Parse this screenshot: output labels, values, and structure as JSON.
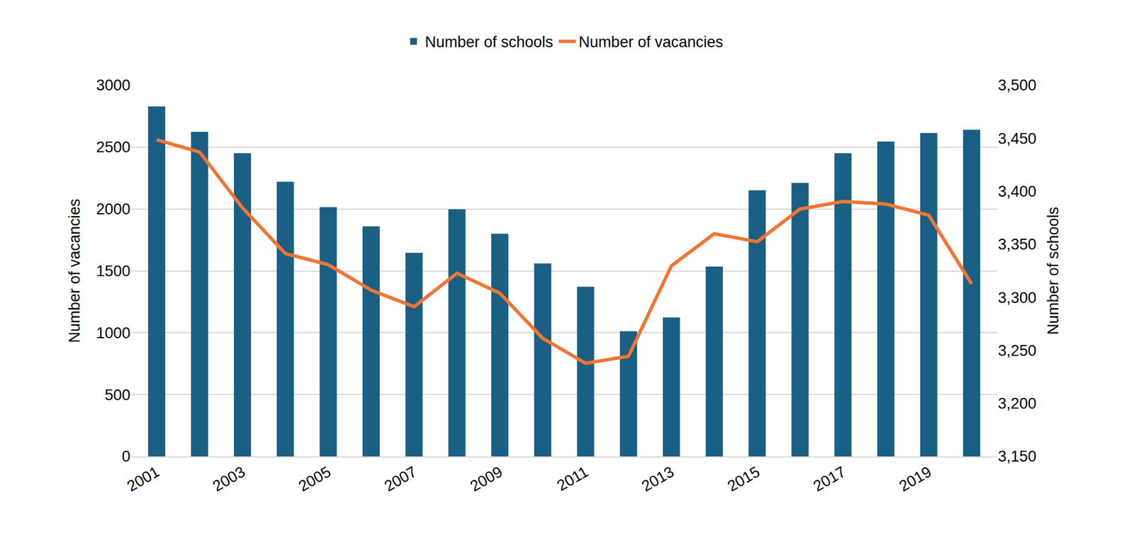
{
  "chart_data": {
    "type": "bar",
    "categories": [
      "2001",
      null,
      "2003",
      null,
      "2005",
      null,
      "2007",
      null,
      "2009",
      null,
      "2011",
      null,
      "2013",
      null,
      "2015",
      null,
      "2017",
      null,
      "2019",
      null
    ],
    "series": [
      {
        "name": "Number of schools",
        "type": "bar",
        "color": "#1a5f84",
        "axis": "y2",
        "values": [
          3480,
          3456,
          3436,
          3409,
          3385,
          3367,
          3342,
          3383,
          3360,
          3332,
          3310,
          3268,
          3281,
          3329,
          3401,
          3408,
          3436,
          3447,
          3455,
          3458
        ]
      },
      {
        "name": "Number of vacancies",
        "type": "line",
        "color": "#f07534",
        "values": [
          2560,
          2460,
          2010,
          1640,
          1550,
          1344,
          1210,
          1480,
          1320,
          955,
          753,
          810,
          1540,
          1800,
          1735,
          2000,
          2060,
          2040,
          1950,
          1395
        ]
      }
    ],
    "y_label": "Number of vacancies",
    "y2_label": "Number of schools",
    "ylim": [
      0,
      3000
    ],
    "yticks": [
      0,
      500,
      1000,
      1500,
      2000,
      2500,
      3000
    ],
    "y2lim": [
      3150,
      3500
    ],
    "y2ticks": [
      {
        "value": 3150,
        "label": "3,150"
      },
      {
        "value": 3200,
        "label": "3,200"
      },
      {
        "value": 3250,
        "label": "3,250"
      },
      {
        "value": 3300,
        "label": "3,300"
      },
      {
        "value": 3350,
        "label": "3,350"
      },
      {
        "value": 3400,
        "label": "3,400"
      },
      {
        "value": 3450,
        "label": "3,450"
      },
      {
        "value": 3500,
        "label": "3,500"
      }
    ],
    "grid": true,
    "legend": "top"
  }
}
